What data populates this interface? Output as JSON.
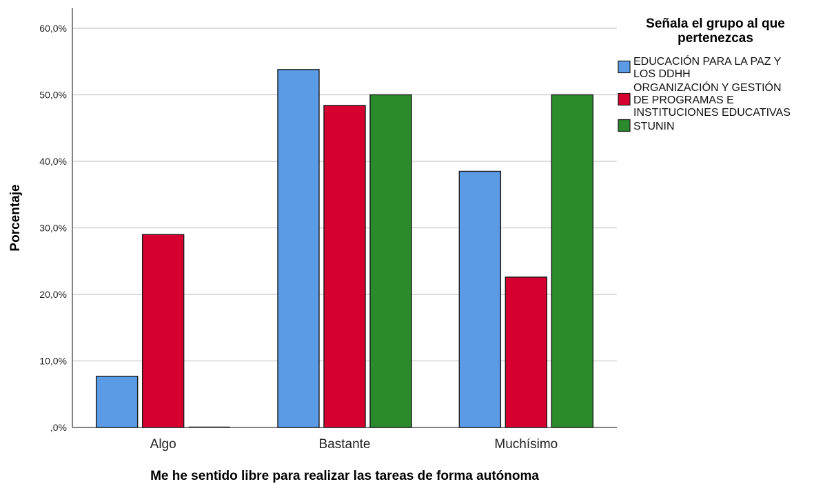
{
  "chart_data": {
    "type": "bar",
    "categories": [
      "Algo",
      "Bastante",
      "Muchísimo"
    ],
    "series": [
      {
        "name": "EDUCACIÓN PARA LA PAZ Y LOS DDHH",
        "values": [
          7.7,
          53.8,
          38.5
        ],
        "color": "#5b9be6"
      },
      {
        "name": "ORGANIZACIÓN Y GESTIÓN DE PROGRAMAS E INSTITUCIONES EDUCATIVAS",
        "values": [
          29.0,
          48.4,
          22.6
        ],
        "color": "#d5002f"
      },
      {
        "name": "STUNIN",
        "values": [
          0.0,
          50.0,
          50.0
        ],
        "color": "#2b8a2b"
      }
    ],
    "xlabel": "Me he sentido libre para realizar las tareas de forma autónoma",
    "ylabel": "Porcentaje",
    "ylim": [
      0,
      60
    ],
    "yticks": [
      ",0%",
      "10,0%",
      "20,0%",
      "30,0%",
      "40,0%",
      "50,0%",
      "60,0%"
    ],
    "grid": true,
    "legend": {
      "title_lines": [
        "Señala el grupo al que",
        "pertenezcas"
      ],
      "placement": "top-right",
      "entries": [
        {
          "lines": [
            "EDUCACIÓN PARA LA PAZ Y",
            "LOS DDHH"
          ]
        },
        {
          "lines": [
            "ORGANIZACIÓN Y GESTIÓN",
            "DE PROGRAMAS E",
            "INSTITUCIONES EDUCATIVAS"
          ]
        },
        {
          "lines": [
            "STUNIN"
          ]
        }
      ]
    }
  }
}
